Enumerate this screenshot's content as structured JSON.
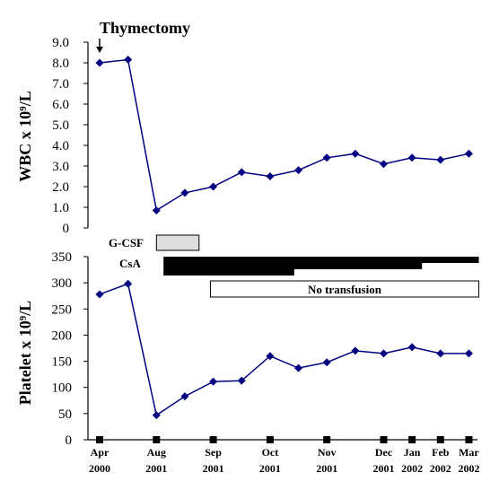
{
  "chart_data": [
    {
      "type": "line",
      "ylabel": "WBC x 10⁹/L",
      "ylim": [
        0,
        9
      ],
      "yticks": [
        "0",
        "1.0",
        "2.0",
        "3.0",
        "4.0",
        "5.0",
        "6.0",
        "7.0",
        "8.0",
        "9.0"
      ],
      "x": [
        0,
        1,
        2,
        3,
        4,
        5,
        6,
        7,
        8,
        9,
        10,
        11,
        12,
        13
      ],
      "values": [
        8.0,
        8.15,
        0.85,
        1.7,
        2.0,
        2.7,
        2.5,
        2.8,
        3.4,
        3.6,
        3.1,
        3.4,
        3.3,
        3.6
      ],
      "marker": "diamond",
      "color": "#000080",
      "annotation": {
        "text": "Thymectomy",
        "x": 0
      }
    },
    {
      "type": "line",
      "ylabel": "Platelet x 10⁹/L",
      "ylim": [
        0,
        350
      ],
      "yticks": [
        "0",
        "50",
        "100",
        "150",
        "200",
        "250",
        "300",
        "350"
      ],
      "x": [
        0,
        1,
        2,
        3,
        4,
        5,
        6,
        7,
        8,
        9,
        10,
        11,
        12,
        13
      ],
      "values": [
        278,
        298,
        47,
        83,
        111,
        113,
        160,
        137,
        148,
        170,
        165,
        177,
        165,
        165
      ],
      "marker": "diamond",
      "color": "#000080",
      "xlabels": [
        {
          "x": 0,
          "line1": "Apr",
          "line2": "2000"
        },
        {
          "x": 2,
          "line1": "Aug",
          "line2": "2001"
        },
        {
          "x": 4,
          "line1": "Sep",
          "line2": "2001"
        },
        {
          "x": 6,
          "line1": "Oct",
          "line2": "2001"
        },
        {
          "x": 8,
          "line1": "Nov",
          "line2": "2001"
        },
        {
          "x": 10,
          "line1": "Dec",
          "line2": "2001"
        },
        {
          "x": 11,
          "line1": "Jan",
          "line2": "2002"
        },
        {
          "x": 12,
          "line1": "Feb",
          "line2": "2002"
        },
        {
          "x": 13,
          "line1": "Mar",
          "line2": "2002"
        }
      ],
      "treatments": [
        {
          "label": "G-CSF",
          "start": 2.0,
          "end": 3.5,
          "fill": "#dddddd"
        },
        {
          "label": "CsA",
          "segments": [
            {
              "start": 2.25,
              "end": 6.85
            },
            {
              "start": 2.25,
              "end": 11.35
            },
            {
              "start": 2.25,
              "end": 13.35
            }
          ],
          "fill": "#000000"
        },
        {
          "label": "No transfusion",
          "start": 3.9,
          "end": 13.35,
          "fill": "#ffffff"
        }
      ]
    }
  ]
}
